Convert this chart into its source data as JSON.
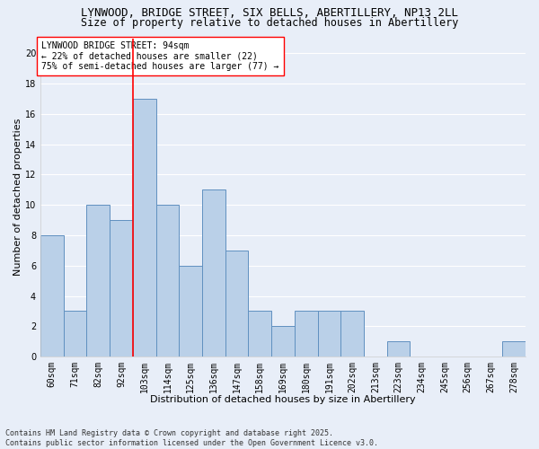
{
  "title_line1": "LYNWOOD, BRIDGE STREET, SIX BELLS, ABERTILLERY, NP13 2LL",
  "title_line2": "Size of property relative to detached houses in Abertillery",
  "xlabel": "Distribution of detached houses by size in Abertillery",
  "ylabel": "Number of detached properties",
  "categories": [
    "60sqm",
    "71sqm",
    "82sqm",
    "92sqm",
    "103sqm",
    "114sqm",
    "125sqm",
    "136sqm",
    "147sqm",
    "158sqm",
    "169sqm",
    "180sqm",
    "191sqm",
    "202sqm",
    "213sqm",
    "223sqm",
    "234sqm",
    "245sqm",
    "256sqm",
    "267sqm",
    "278sqm"
  ],
  "values": [
    8,
    3,
    10,
    9,
    17,
    10,
    6,
    11,
    7,
    3,
    2,
    3,
    3,
    3,
    0,
    1,
    0,
    0,
    0,
    0,
    1
  ],
  "bar_color": "#bad0e8",
  "bar_edge_color": "#6090c0",
  "vline_x": 4,
  "vline_color": "red",
  "annotation_text": "LYNWOOD BRIDGE STREET: 94sqm\n← 22% of detached houses are smaller (22)\n75% of semi-detached houses are larger (77) →",
  "annotation_box_color": "white",
  "annotation_box_edge_color": "red",
  "ylim": [
    0,
    21
  ],
  "yticks": [
    0,
    2,
    4,
    6,
    8,
    10,
    12,
    14,
    16,
    18,
    20
  ],
  "background_color": "#e8eef8",
  "grid_color": "white",
  "footnote": "Contains HM Land Registry data © Crown copyright and database right 2025.\nContains public sector information licensed under the Open Government Licence v3.0.",
  "title_fontsize": 9,
  "subtitle_fontsize": 8.5,
  "axis_label_fontsize": 8,
  "tick_fontsize": 7,
  "annotation_fontsize": 7,
  "footnote_fontsize": 6
}
